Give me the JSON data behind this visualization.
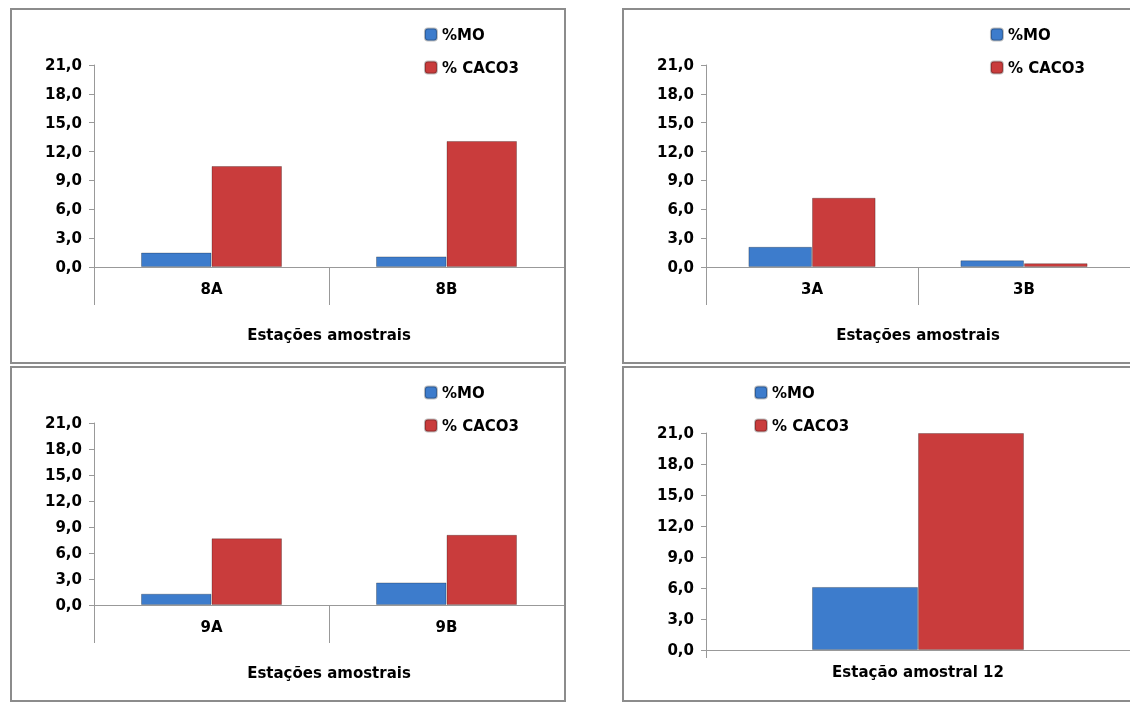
{
  "chart_data": [
    {
      "type": "bar",
      "xlabel": "Estações amostrais",
      "categories": [
        "8A",
        "8B"
      ],
      "series": [
        {
          "name": "%MO",
          "color": "#3d7ccc",
          "values": [
            1.5,
            1.1
          ]
        },
        {
          "name": "% CACO3",
          "color": "#c93c3c",
          "values": [
            10.5,
            13.1
          ]
        }
      ],
      "ylim": [
        0,
        21
      ],
      "yticks": [
        {
          "value": 0,
          "label": "0,0"
        },
        {
          "value": 3,
          "label": "3,0"
        },
        {
          "value": 6,
          "label": "6,0"
        },
        {
          "value": 9,
          "label": "9,0"
        },
        {
          "value": 12,
          "label": "12,0"
        },
        {
          "value": 15,
          "label": "15,0"
        },
        {
          "value": 18,
          "label": "18,0"
        },
        {
          "value": 21,
          "label": "21,0"
        }
      ],
      "grid": false,
      "legend": "top right"
    },
    {
      "type": "bar",
      "xlabel": "Estações amostrais",
      "categories": [
        "3A",
        "3B"
      ],
      "series": [
        {
          "name": "%MO",
          "color": "#3d7ccc",
          "values": [
            2.1,
            0.7
          ]
        },
        {
          "name": "% CACO3",
          "color": "#c93c3c",
          "values": [
            7.2,
            0.4
          ]
        }
      ],
      "ylim": [
        0,
        21
      ],
      "yticks": [
        {
          "value": 0,
          "label": "0,0"
        },
        {
          "value": 3,
          "label": "3,0"
        },
        {
          "value": 6,
          "label": "6,0"
        },
        {
          "value": 9,
          "label": "9,0"
        },
        {
          "value": 12,
          "label": "12,0"
        },
        {
          "value": 15,
          "label": "15,0"
        },
        {
          "value": 18,
          "label": "18,0"
        },
        {
          "value": 21,
          "label": "21,0"
        }
      ],
      "grid": false,
      "legend": "top right"
    },
    {
      "type": "bar",
      "xlabel": "Estações amostrais",
      "categories": [
        "9A",
        "9B"
      ],
      "series": [
        {
          "name": "%MO",
          "color": "#3d7ccc",
          "values": [
            1.3,
            2.6
          ]
        },
        {
          "name": "% CACO3",
          "color": "#c93c3c",
          "values": [
            7.7,
            8.1
          ]
        }
      ],
      "ylim": [
        0,
        21
      ],
      "yticks": [
        {
          "value": 0,
          "label": "0,0"
        },
        {
          "value": 3,
          "label": "3,0"
        },
        {
          "value": 6,
          "label": "6,0"
        },
        {
          "value": 9,
          "label": "9,0"
        },
        {
          "value": 12,
          "label": "12,0"
        },
        {
          "value": 15,
          "label": "15,0"
        },
        {
          "value": 18,
          "label": "18,0"
        },
        {
          "value": 21,
          "label": "21,0"
        }
      ],
      "grid": false,
      "legend": "top right"
    },
    {
      "type": "bar",
      "categories": [
        "Estação amostral 12"
      ],
      "series": [
        {
          "name": "%MO",
          "color": "#3d7ccc",
          "values": [
            6.1
          ]
        },
        {
          "name": "% CACO3",
          "color": "#c93c3c",
          "values": [
            21.0
          ]
        }
      ],
      "ylim": [
        0,
        21
      ],
      "yticks": [
        {
          "value": 0,
          "label": "0,0"
        },
        {
          "value": 3,
          "label": "3,0"
        },
        {
          "value": 6,
          "label": "6,0"
        },
        {
          "value": 9,
          "label": "9,0"
        },
        {
          "value": 12,
          "label": "12,0"
        },
        {
          "value": 15,
          "label": "15,0"
        },
        {
          "value": 18,
          "label": "18,0"
        },
        {
          "value": 21,
          "label": "21,0"
        }
      ],
      "grid": false,
      "legend": "top left"
    }
  ]
}
